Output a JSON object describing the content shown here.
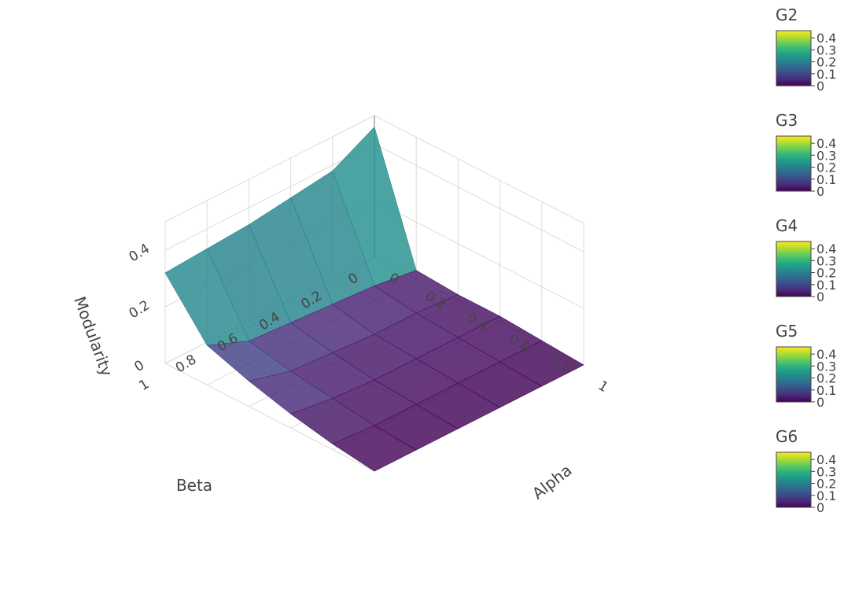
{
  "chart_data": {
    "type": "surface3d",
    "x_axis": {
      "label": "Alpha",
      "range": [
        0,
        1
      ],
      "ticks": [
        0,
        0.2,
        0.4,
        0.6,
        0.8,
        1
      ],
      "tick_labels": [
        "0",
        "0.2",
        "0.4",
        "0.6",
        "0.8",
        "1"
      ]
    },
    "y_axis": {
      "label": "Beta",
      "range": [
        0,
        1
      ],
      "ticks": [
        0,
        0.2,
        0.4,
        0.6,
        0.8,
        1
      ],
      "tick_labels": [
        "0",
        "0.2",
        "0.4",
        "0.6",
        "0.8",
        "1"
      ]
    },
    "z_axis": {
      "label": "Modularity",
      "range": [
        0,
        0.5
      ],
      "ticks": [
        0,
        0.2,
        0.4
      ],
      "tick_labels": [
        "0",
        "0.2",
        "0.4"
      ]
    },
    "grid": true,
    "colorscale": "viridis",
    "colorscale_stops": [
      "#440154",
      "#482878",
      "#3e4989",
      "#31688e",
      "#26828e",
      "#1f9e89",
      "#35b779",
      "#6ece58",
      "#b5de2b",
      "#fde725"
    ],
    "surface": {
      "alpha": [
        0,
        0.2,
        0.4,
        0.6,
        0.8,
        1
      ],
      "beta": [
        0,
        0.2,
        0.4,
        0.6,
        0.8,
        1
      ],
      "z": [
        [
          0.46,
          0.03,
          0.02,
          0.02,
          0.01,
          0.0
        ],
        [
          0.38,
          0.05,
          0.03,
          0.02,
          0.01,
          0.0
        ],
        [
          0.36,
          0.06,
          0.03,
          0.02,
          0.01,
          0.0
        ],
        [
          0.34,
          0.07,
          0.04,
          0.02,
          0.01,
          0.0
        ],
        [
          0.33,
          0.08,
          0.05,
          0.03,
          0.01,
          0.0
        ],
        [
          0.32,
          0.14,
          0.09,
          0.05,
          0.02,
          0.0
        ]
      ]
    },
    "colorbars": [
      {
        "title": "G2",
        "ticks": [
          0,
          0.1,
          0.2,
          0.3,
          0.4
        ],
        "tick_labels": [
          "0",
          "0.1",
          "0.2",
          "0.3",
          "0.4"
        ],
        "range": [
          0,
          0.46
        ]
      },
      {
        "title": "G3",
        "ticks": [
          0,
          0.1,
          0.2,
          0.3,
          0.4
        ],
        "tick_labels": [
          "0",
          "0.1",
          "0.2",
          "0.3",
          "0.4"
        ],
        "range": [
          0,
          0.46
        ]
      },
      {
        "title": "G4",
        "ticks": [
          0,
          0.1,
          0.2,
          0.3,
          0.4
        ],
        "tick_labels": [
          "0",
          "0.1",
          "0.2",
          "0.3",
          "0.4"
        ],
        "range": [
          0,
          0.46
        ]
      },
      {
        "title": "G5",
        "ticks": [
          0,
          0.1,
          0.2,
          0.3,
          0.4
        ],
        "tick_labels": [
          "0",
          "0.1",
          "0.2",
          "0.3",
          "0.4"
        ],
        "range": [
          0,
          0.46
        ]
      },
      {
        "title": "G6",
        "ticks": [
          0,
          0.1,
          0.2,
          0.3,
          0.4
        ],
        "tick_labels": [
          "0",
          "0.1",
          "0.2",
          "0.3",
          "0.4"
        ],
        "range": [
          0,
          0.46
        ]
      }
    ]
  }
}
